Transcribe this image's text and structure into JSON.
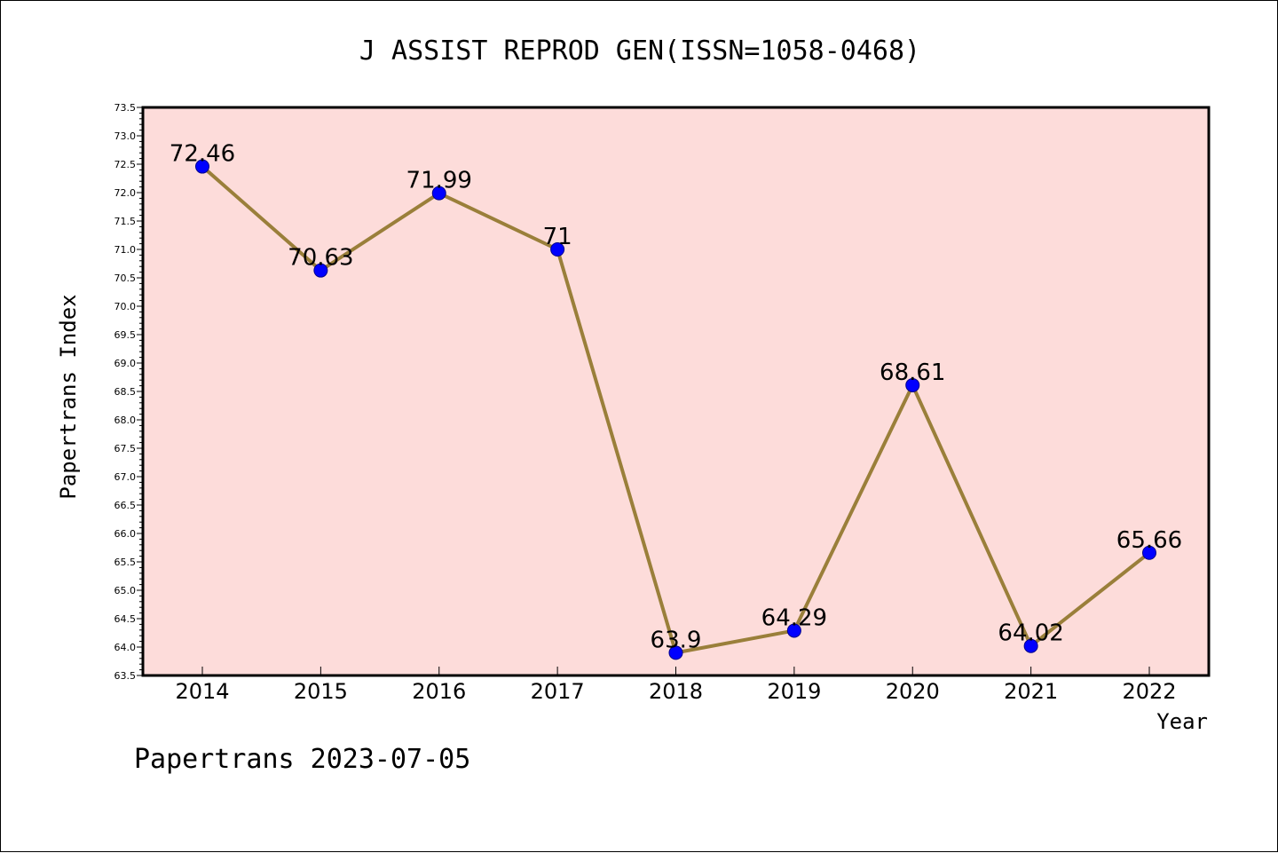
{
  "chart_data": {
    "type": "line",
    "title": "J ASSIST REPROD GEN(ISSN=1058-0468)",
    "xlabel": "Year",
    "ylabel": "Papertrans Index",
    "categories": [
      "2014",
      "2015",
      "2016",
      "2017",
      "2018",
      "2019",
      "2020",
      "2021",
      "2022"
    ],
    "series": [
      {
        "values": [
          72.46,
          70.63,
          71.99,
          71,
          63.9,
          64.29,
          68.61,
          64.02,
          65.66
        ],
        "labels": [
          "72.46",
          "70.63",
          "71.99",
          "71",
          "63.9",
          "64.29",
          "68.61",
          "64.02",
          "65.66"
        ]
      }
    ],
    "ylim": [
      63.5,
      73.5
    ],
    "yticks": [
      "63.5",
      "64.0",
      "64.5",
      "65.0",
      "65.5",
      "66.0",
      "66.5",
      "67.0",
      "67.5",
      "68.0",
      "68.5",
      "69.0",
      "69.5",
      "70.0",
      "70.5",
      "71.0",
      "71.5",
      "72.0",
      "72.5",
      "73.0",
      "73.5"
    ],
    "grid": false,
    "colors": {
      "plot_background": "#fddcda",
      "line": "#9a7f3a",
      "marker": "#0000ff"
    }
  },
  "footer": "Papertrans 2023-07-05"
}
